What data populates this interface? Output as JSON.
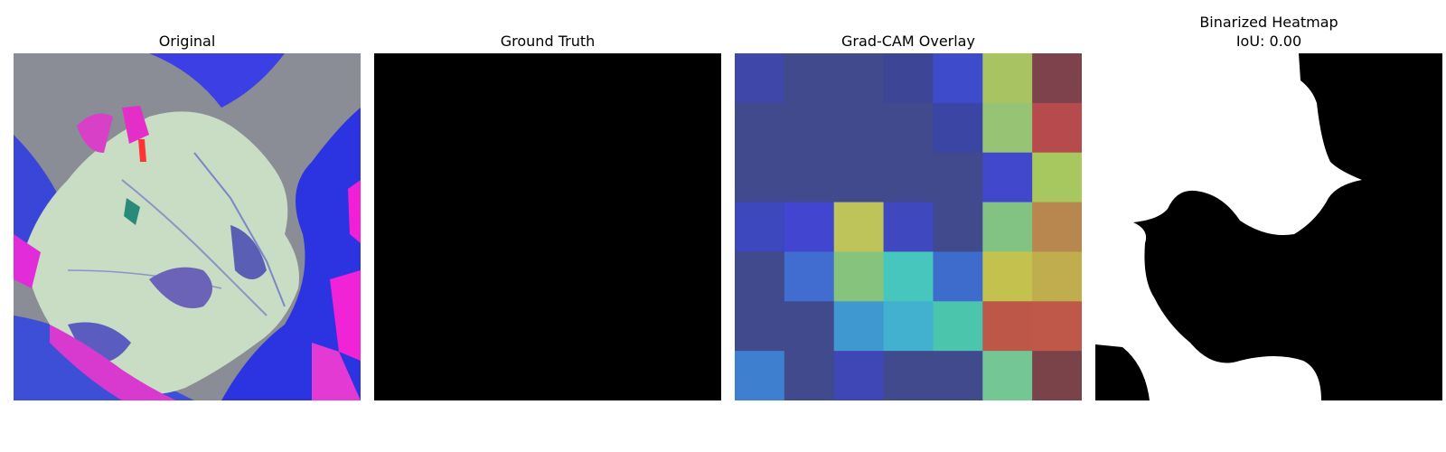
{
  "panels": {
    "original": {
      "title": "Original"
    },
    "ground_truth": {
      "title": "Ground Truth"
    },
    "gradcam": {
      "title": "Grad-CAM Overlay",
      "grid": [
        [
          "#3f47a8",
          "#404a8c",
          "#404a8c",
          "#3d4596",
          "#3e4ccc",
          "#a8c462",
          "#7e424d"
        ],
        [
          "#404a8c",
          "#404a8c",
          "#404a8c",
          "#404a8c",
          "#3b45a4",
          "#97c474",
          "#b64a4d"
        ],
        [
          "#404a8c",
          "#404a8c",
          "#404a8c",
          "#404a8c",
          "#404a8c",
          "#4148cb",
          "#a7c85e"
        ],
        [
          "#3d47be",
          "#4145cf",
          "#bec45a",
          "#3f48bf",
          "#404a8c",
          "#82c384",
          "#b7874f"
        ],
        [
          "#404a8c",
          "#416dd0",
          "#86c47e",
          "#47c6be",
          "#3e6ccd",
          "#c4c24f",
          "#c0ad4e"
        ],
        [
          "#404a8c",
          "#404a8c",
          "#3f98d0",
          "#42b0cf",
          "#4bc6ad",
          "#bd5747",
          "#c05849"
        ],
        [
          "#3f7fcf",
          "#404a8c",
          "#3f47b6",
          "#404a8c",
          "#404a8c",
          "#74c795",
          "#7a4249"
        ]
      ]
    },
    "binarized": {
      "title_line1": "Binarized Heatmap",
      "title_line2": "IoU: 0.00"
    }
  }
}
